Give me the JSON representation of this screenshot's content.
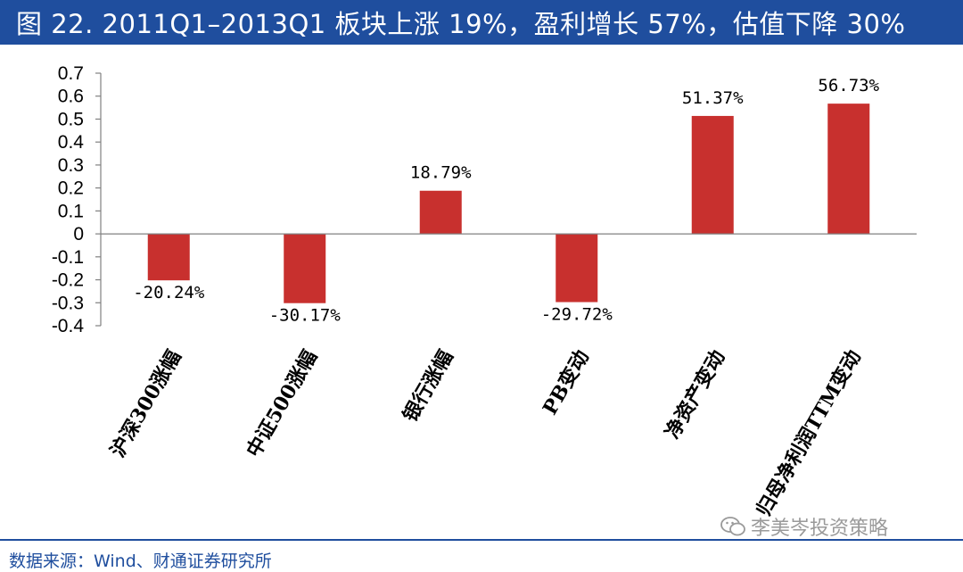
{
  "header": {
    "title": "图 22. 2011Q1–2013Q1 板块上涨 19%，盈利增长 57%，估值下降 30%"
  },
  "footer": {
    "source": "数据来源：Wind、财通证券研究所",
    "watermark": "李美岑投资策略",
    "watermark_icon": "wechat-icon"
  },
  "colors": {
    "bar": "#c8302e",
    "header_bg": "#1f4e9e"
  },
  "chart_data": {
    "type": "bar",
    "title": "",
    "xlabel": "",
    "ylabel": "",
    "categories": [
      "沪深300涨幅",
      "中证500涨幅",
      "银行涨幅",
      "PB变动",
      "净资产变动",
      "归母净利润TTM变动"
    ],
    "values": [
      -0.2024,
      -0.3017,
      0.1879,
      -0.2972,
      0.5137,
      0.5673
    ],
    "data_labels": [
      "-20.24%",
      "-30.17%",
      "18.79%",
      "-29.72%",
      "51.37%",
      "56.73%"
    ],
    "ylim": [
      -0.4,
      0.7
    ],
    "yticks": [
      0.7,
      0.6,
      0.5,
      0.4,
      0.3,
      0.2,
      0.1,
      0,
      -0.1,
      -0.2,
      -0.3,
      -0.4
    ],
    "ytick_labels": [
      "0.7",
      "0.6",
      "0.5",
      "0.4",
      "0.3",
      "0.2",
      "0.1",
      "0",
      "-0.1",
      "-0.2",
      "-0.3",
      "-0.4"
    ],
    "grid": false,
    "legend": "none"
  }
}
